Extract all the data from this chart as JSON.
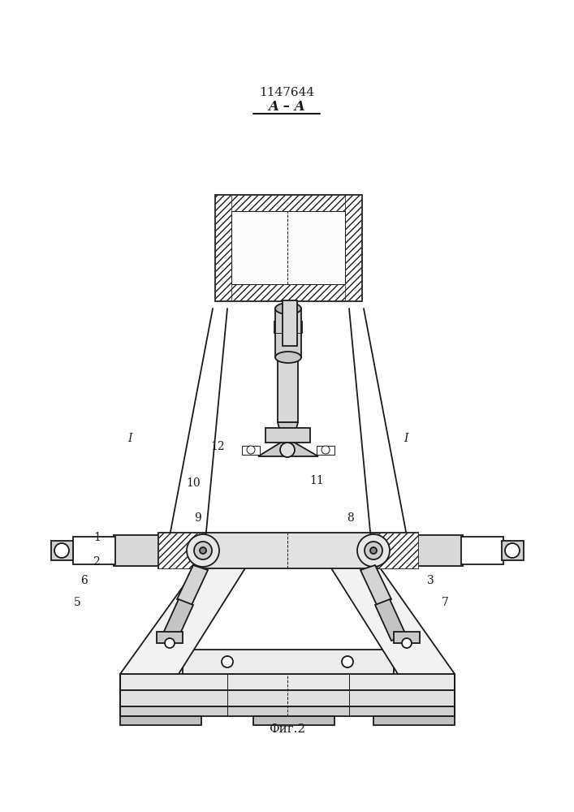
{
  "title": "1147644",
  "fig_label": "Фиг.2",
  "background": "#ffffff",
  "lc": "#1a1a1a",
  "lw": 1.3,
  "lwt": 0.7,
  "lwk": 2.0,
  "labels": [
    [
      "1",
      120,
      248
    ],
    [
      "2",
      118,
      218
    ],
    [
      "3",
      530,
      195
    ],
    [
      "5",
      95,
      168
    ],
    [
      "6",
      103,
      195
    ],
    [
      "7",
      548,
      168
    ],
    [
      "8",
      432,
      272
    ],
    [
      "9",
      243,
      272
    ],
    [
      "10",
      238,
      315
    ],
    [
      "11",
      390,
      318
    ],
    [
      "12",
      268,
      360
    ],
    [
      "I",
      160,
      370
    ],
    [
      "I",
      500,
      370
    ]
  ]
}
